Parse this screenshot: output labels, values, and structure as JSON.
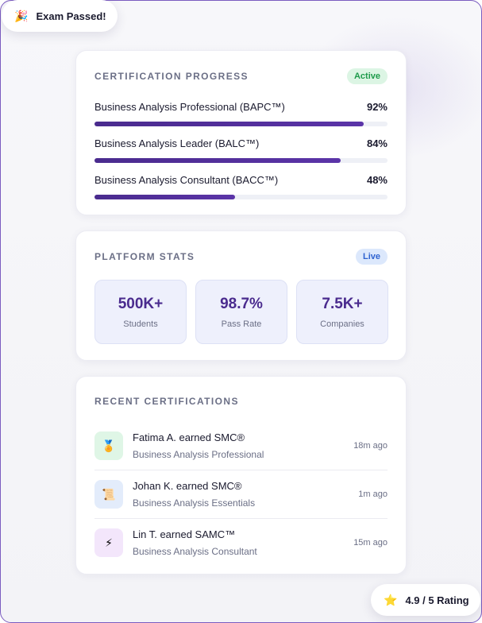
{
  "toasts": {
    "exam_passed": {
      "icon": "party-popper-icon",
      "glyph": "🎉",
      "label": "Exam Passed!"
    },
    "rating": {
      "icon": "star-icon",
      "glyph": "⭐",
      "label": "4.9 / 5 Rating"
    }
  },
  "certification_progress": {
    "title": "CERTIFICATION PROGRESS",
    "badge": "Active",
    "items": [
      {
        "label": "Business Analysis Professional (BAPC™)",
        "percent_text": "92%",
        "percent": 92
      },
      {
        "label": "Business Analysis Leader (BALC™)",
        "percent_text": "84%",
        "percent": 84
      },
      {
        "label": "Business Analysis Consultant (BACC™)",
        "percent_text": "48%",
        "percent": 48
      }
    ]
  },
  "platform_stats": {
    "title": "PLATFORM STATS",
    "badge": "Live",
    "stats": [
      {
        "value": "500K+",
        "label": "Students"
      },
      {
        "value": "98.7%",
        "label": "Pass Rate"
      },
      {
        "value": "7.5K+",
        "label": "Companies"
      }
    ]
  },
  "recent_certifications": {
    "title": "RECENT CERTIFICATIONS",
    "items": [
      {
        "icon": "medal-icon",
        "glyph": "🏅",
        "icon_bg": "#dff6e6",
        "name": "Fatima A. earned SMC®",
        "course": "Business Analysis Professional",
        "time": "18m ago"
      },
      {
        "icon": "scroll-icon",
        "glyph": "📜",
        "icon_bg": "#e3ecfb",
        "name": "Johan K. earned SMC®",
        "course": "Business Analysis Essentials",
        "time": "1m ago"
      },
      {
        "icon": "lightning-icon",
        "glyph": "⚡",
        "icon_bg": "#f3e6fb",
        "name": "Lin T. earned SAMC™",
        "course": "Business Analysis Consultant",
        "time": "15m ago"
      }
    ]
  },
  "colors": {
    "accent": "#4a2b8e",
    "active_badge": "#1d9a4a",
    "live_badge": "#2f63d0"
  }
}
